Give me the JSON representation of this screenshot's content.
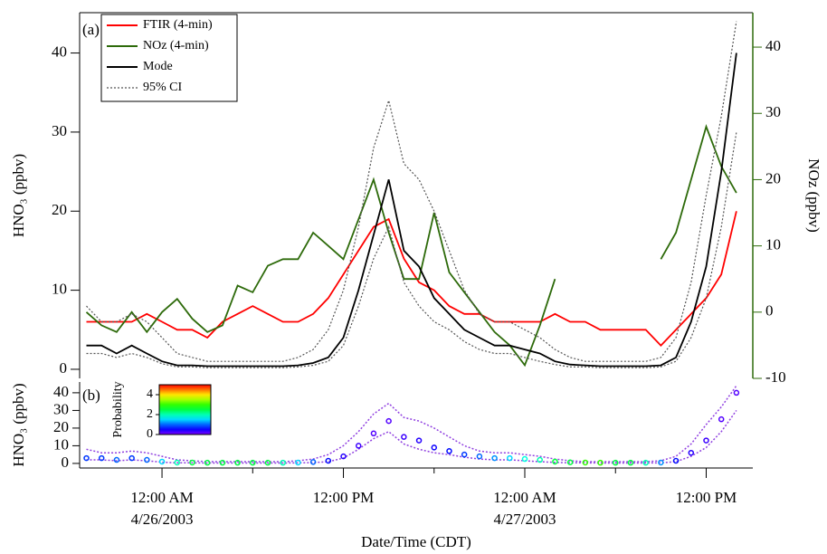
{
  "chart_data": {
    "type": "line",
    "xlabel": "Date/Time (CDT)",
    "x": [
      "2003-04-25T19:00",
      "2003-04-25T20:00",
      "2003-04-25T21:00",
      "2003-04-25T22:00",
      "2003-04-25T23:00",
      "2003-04-26T00:00",
      "2003-04-26T01:00",
      "2003-04-26T02:00",
      "2003-04-26T03:00",
      "2003-04-26T04:00",
      "2003-04-26T05:00",
      "2003-04-26T06:00",
      "2003-04-26T07:00",
      "2003-04-26T08:00",
      "2003-04-26T09:00",
      "2003-04-26T10:00",
      "2003-04-26T11:00",
      "2003-04-26T12:00",
      "2003-04-26T13:00",
      "2003-04-26T14:00",
      "2003-04-26T15:00",
      "2003-04-26T16:00",
      "2003-04-26T17:00",
      "2003-04-26T18:00",
      "2003-04-26T19:00",
      "2003-04-26T20:00",
      "2003-04-26T21:00",
      "2003-04-26T22:00",
      "2003-04-26T23:00",
      "2003-04-27T00:00",
      "2003-04-27T01:00",
      "2003-04-27T02:00",
      "2003-04-27T03:00",
      "2003-04-27T04:00",
      "2003-04-27T05:00",
      "2003-04-27T06:00",
      "2003-04-27T07:00",
      "2003-04-27T08:00",
      "2003-04-27T09:00",
      "2003-04-27T10:00",
      "2003-04-27T11:00",
      "2003-04-27T12:00",
      "2003-04-27T13:00",
      "2003-04-27T14:00"
    ],
    "xlim": [
      "2003-04-25T18:33",
      "2003-04-27T15:05"
    ],
    "xticks": [
      {
        "value": "2003-04-26T00:00",
        "label": [
          "12:00 AM",
          "4/26/2003"
        ]
      },
      {
        "value": "2003-04-26T12:00",
        "label": [
          "12:00 PM"
        ]
      },
      {
        "value": "2003-04-27T00:00",
        "label": [
          "12:00 AM",
          "4/27/2003"
        ]
      },
      {
        "value": "2003-04-27T12:00",
        "label": [
          "12:00 PM"
        ]
      }
    ],
    "xminorticks": [
      "2003-04-26T06:00",
      "2003-04-26T18:00",
      "2003-04-27T06:00"
    ],
    "panel_a": {
      "label": "(a)",
      "ylabel": "HNO₃ (ppbv)",
      "y2label": "NOz (ppbv)",
      "y2color": "#2d6a0a",
      "ylim": [
        -1.15,
        45.1
      ],
      "yticks": [
        0,
        10,
        20,
        30,
        40
      ],
      "y2lim": [
        -10,
        45.2
      ],
      "y2ticks": [
        -10,
        0,
        10,
        20,
        30,
        40
      ],
      "legend": "upper left",
      "series": [
        {
          "name": "FTIR (4-min)",
          "color": "#ff0000",
          "values": [
            6,
            6,
            6,
            6,
            7,
            6,
            5,
            5,
            4,
            6,
            7,
            8,
            7,
            6,
            6,
            7,
            9,
            12,
            15,
            18,
            19,
            14,
            11,
            10,
            8,
            7,
            7,
            6,
            6,
            6,
            6,
            7,
            6,
            6,
            5,
            5,
            5,
            5,
            3,
            5,
            7,
            9,
            12,
            20
          ]
        },
        {
          "name": "NOz (4-min)",
          "color": "#2d6a0a",
          "axis": "y2",
          "values": [
            0,
            -2,
            -3,
            0,
            -3,
            0,
            2,
            -1,
            -3,
            -2,
            4,
            3,
            7,
            8,
            8,
            12,
            10,
            8,
            14,
            20,
            12,
            5,
            5,
            15,
            6,
            3,
            0,
            -3,
            -5,
            -8,
            -2,
            5,
            null,
            null,
            null,
            null,
            null,
            null,
            8,
            12,
            20,
            28,
            22,
            18
          ]
        },
        {
          "name": "Mode",
          "color": "#000000",
          "values": [
            3,
            3,
            2,
            3,
            2,
            1,
            0.5,
            0.5,
            0.4,
            0.4,
            0.4,
            0.4,
            0.4,
            0.4,
            0.5,
            0.8,
            1.5,
            4,
            10,
            17,
            24,
            15,
            13,
            9,
            7,
            5,
            4,
            3,
            3,
            2.5,
            2,
            1,
            0.6,
            0.5,
            0.4,
            0.4,
            0.4,
            0.4,
            0.5,
            1.5,
            6,
            13,
            25,
            40
          ]
        },
        {
          "name": "95% CI",
          "color": "#555555",
          "dash": "dotted",
          "values": [
            8,
            6,
            6,
            7,
            6,
            4,
            2,
            1.5,
            1,
            1,
            1,
            1,
            1,
            1,
            1.5,
            2.5,
            5,
            10,
            18,
            28,
            34,
            26,
            24,
            20,
            15,
            10,
            7,
            6,
            6,
            5,
            4,
            2.5,
            1.5,
            1,
            1,
            1,
            1,
            1,
            1.5,
            4,
            11,
            22,
            32,
            44
          ],
          "lower": [
            2,
            2,
            1.5,
            2,
            1.5,
            0.7,
            0.3,
            0.3,
            0.2,
            0.2,
            0.2,
            0.2,
            0.2,
            0.2,
            0.3,
            0.5,
            1,
            3,
            8,
            14,
            18,
            11,
            8,
            6,
            5,
            3.5,
            2.5,
            2,
            2,
            1.5,
            1,
            0.6,
            0.3,
            0.3,
            0.2,
            0.2,
            0.2,
            0.2,
            0.3,
            1,
            4,
            9,
            18,
            30
          ]
        }
      ]
    },
    "panel_b": {
      "label": "(b)",
      "ylabel": "HNO₃ (ppbv)",
      "ylim": [
        -2.6,
        46.1
      ],
      "yticks": [
        0,
        10,
        20,
        30,
        40
      ],
      "ci_color": "#9040e0",
      "probability": [
        0.8,
        0.8,
        1,
        0.8,
        1,
        1.5,
        2,
        2.5,
        2.5,
        2.5,
        2.5,
        2.5,
        2.5,
        2,
        1.5,
        1,
        0.6,
        0.4,
        0.3,
        0.2,
        0.2,
        0.3,
        0.4,
        0.5,
        0.6,
        0.8,
        1,
        1.2,
        1.5,
        1.8,
        2,
        2.5,
        2.5,
        3,
        3,
        2.5,
        2.5,
        2,
        1.2,
        0.6,
        0.4,
        0.3,
        0.2,
        0.2
      ],
      "colorbar": {
        "label": "Probability",
        "lim": [
          0,
          5
        ],
        "ticks": [
          0,
          2,
          4
        ]
      }
    }
  }
}
